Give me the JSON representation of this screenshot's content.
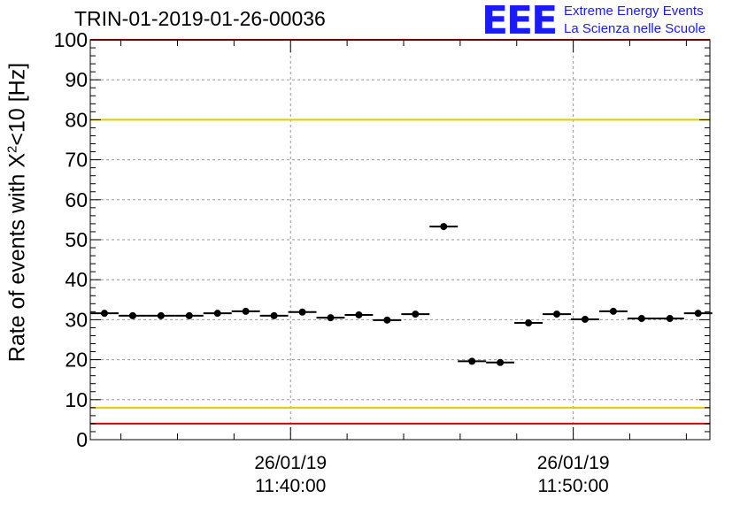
{
  "header": {
    "title": "TRIN-01-2019-01-26-00036",
    "logo_text": "EEE",
    "brand_line1": "Extreme Energy Events",
    "brand_line2": "La Scienza nelle Scuole"
  },
  "colors": {
    "logo": "#1a1aff",
    "yellow_line": "#e8c800",
    "red_line": "#e00000",
    "markers": "#000000",
    "grid": "#999999"
  },
  "chart_data": {
    "type": "scatter",
    "title": "TRIN-01-2019-01-26-00036",
    "ylabel_pre": "Rate of events with X",
    "ylabel_sup": "2",
    "ylabel_post": "<10 [Hz]",
    "ylim": [
      0,
      100
    ],
    "yticks": [
      0,
      10,
      20,
      30,
      40,
      50,
      60,
      70,
      80,
      90,
      100
    ],
    "xlim": [
      "11:32:55",
      "11:54:50"
    ],
    "xticks": [
      {
        "date": "26/01/19",
        "time": "11:40:00"
      },
      {
        "date": "26/01/19",
        "time": "11:50:00"
      }
    ],
    "grid": true,
    "bin_width_seconds": 60,
    "x": [
      "11:33:25",
      "11:34:25",
      "11:35:25",
      "11:36:25",
      "11:37:25",
      "11:38:25",
      "11:39:25",
      "11:40:25",
      "11:41:25",
      "11:42:25",
      "11:43:25",
      "11:44:25",
      "11:45:25",
      "11:46:25",
      "11:47:25",
      "11:48:25",
      "11:49:25",
      "11:50:25",
      "11:51:25",
      "11:52:25",
      "11:53:25",
      "11:54:25"
    ],
    "values": [
      31.6,
      31.0,
      31.0,
      31.0,
      31.6,
      32.1,
      31.0,
      31.9,
      30.5,
      31.2,
      29.9,
      31.4,
      53.3,
      19.6,
      19.3,
      29.2,
      31.4,
      30.1,
      32.1,
      30.3,
      30.3,
      31.6
    ],
    "reference_lines": [
      {
        "y": 80,
        "color": "yellow"
      },
      {
        "y": 8,
        "color": "yellow"
      },
      {
        "y": 100,
        "color": "red"
      },
      {
        "y": 4,
        "color": "red"
      }
    ]
  }
}
